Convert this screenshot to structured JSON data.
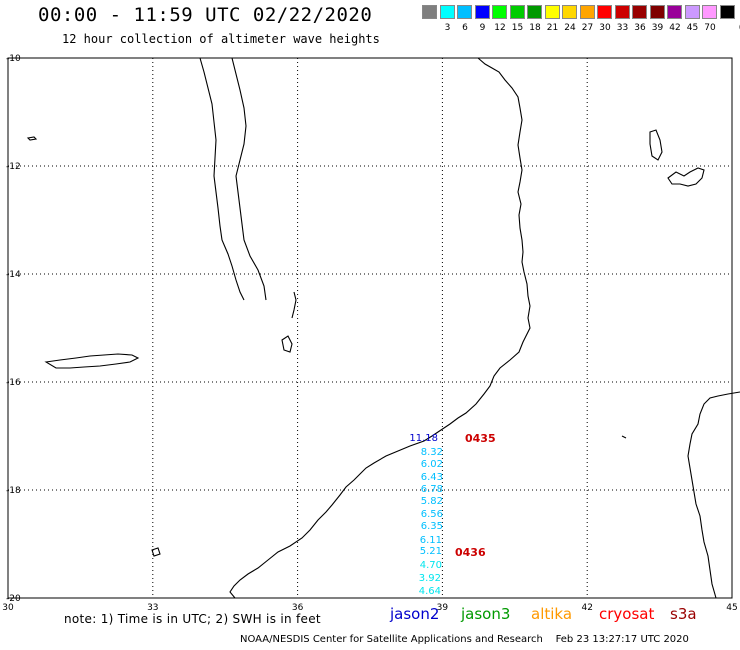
{
  "header": {
    "title": "00:00 - 11:59 UTC 02/22/2020",
    "subtitle": "12 hour collection of altimeter wave heights"
  },
  "legend": {
    "unit": "(ft)",
    "items": [
      {
        "label": "",
        "color": "#7f7f7f"
      },
      {
        "label": "3",
        "color": "#00ffff"
      },
      {
        "label": "6",
        "color": "#00bfff"
      },
      {
        "label": "9",
        "color": "#0000ff"
      },
      {
        "label": "12",
        "color": "#00ff00"
      },
      {
        "label": "15",
        "color": "#00cc00"
      },
      {
        "label": "18",
        "color": "#009900"
      },
      {
        "label": "21",
        "color": "#ffff00"
      },
      {
        "label": "24",
        "color": "#ffd700"
      },
      {
        "label": "27",
        "color": "#ffa500"
      },
      {
        "label": "30",
        "color": "#ff0000"
      },
      {
        "label": "33",
        "color": "#cc0000"
      },
      {
        "label": "36",
        "color": "#990000"
      },
      {
        "label": "39",
        "color": "#7f0000"
      },
      {
        "label": "42",
        "color": "#990099"
      },
      {
        "label": "45",
        "color": "#cc99ff"
      },
      {
        "label": "70",
        "color": "#ff99ff"
      },
      {
        "label": "",
        "color": "#000000"
      }
    ]
  },
  "map": {
    "lat_ticks": [
      "-10",
      "-12",
      "-14",
      "-16",
      "-18",
      "-20"
    ],
    "lon_ticks": [
      "30",
      "33",
      "36",
      "39",
      "42",
      "45"
    ],
    "lat_range": [
      -20,
      -10
    ],
    "lon_range": [
      30,
      45
    ]
  },
  "observations": {
    "passes": [
      {
        "time": "0435",
        "color": "#cc0000"
      },
      {
        "time": "0436",
        "color": "#cc0000"
      }
    ],
    "swh": [
      {
        "value": "11.18",
        "color": "#0000cc"
      },
      {
        "value": "8.32",
        "color": "#00bfff"
      },
      {
        "value": "6.02",
        "color": "#00bfff"
      },
      {
        "value": "6.43",
        "color": "#00bfff"
      },
      {
        "value": "6.78",
        "color": "#00bfff"
      },
      {
        "value": "5.82",
        "color": "#00bfff"
      },
      {
        "value": "6.56",
        "color": "#00bfff"
      },
      {
        "value": "6.35",
        "color": "#00bfff"
      },
      {
        "value": "6.11",
        "color": "#00bfff"
      },
      {
        "value": "5.21",
        "color": "#00bfff"
      },
      {
        "value": "4.70",
        "color": "#00e5ee"
      },
      {
        "value": "3.92",
        "color": "#00e5ee"
      },
      {
        "value": "4.64",
        "color": "#00e5ee"
      }
    ]
  },
  "footer": {
    "note": "note: 1) Time is in UTC; 2) SWH is in feet",
    "credit": "NOAA/NESDIS Center for Satellite Applications and Research    Feb 23 13:27:17 UTC 2020",
    "satellites": [
      {
        "name": "jason2",
        "color": "#0000cc"
      },
      {
        "name": "jason3",
        "color": "#009900"
      },
      {
        "name": "altika",
        "color": "#ff9900"
      },
      {
        "name": "cryosat",
        "color": "#ff0000"
      },
      {
        "name": "s3a",
        "color": "#990000"
      }
    ]
  }
}
